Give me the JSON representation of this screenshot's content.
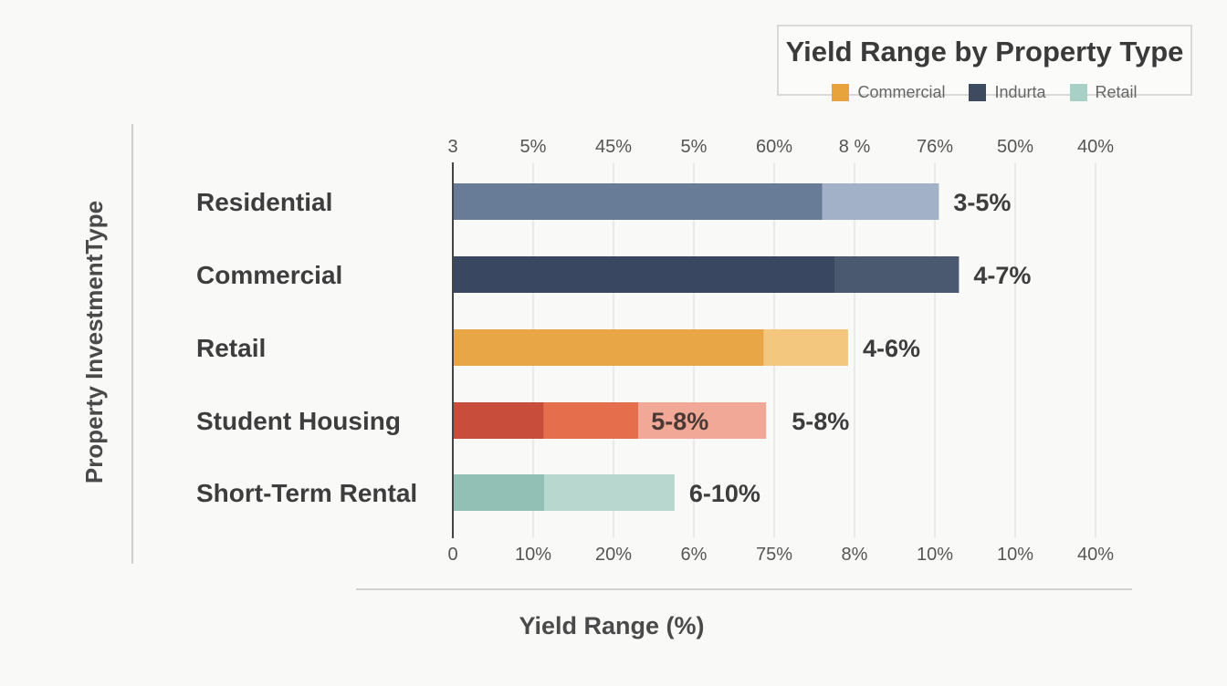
{
  "chart_data": {
    "type": "bar",
    "orientation": "horizontal",
    "stacked": true,
    "title": "Yield Range by Property Type",
    "xlabel": "Yield Range (%)",
    "ylabel": "Property InvestmentType",
    "top_tick_labels": [
      "3",
      "5%",
      "45%",
      "5%",
      "60%",
      "8 %",
      "76%",
      "50%",
      "40%"
    ],
    "bottom_tick_labels": [
      "0",
      "10%",
      "20%",
      "6%",
      "75%",
      "8%",
      "10%",
      "10%",
      "40%"
    ],
    "xlim": [
      0,
      8
    ],
    "grid": true,
    "legend": {
      "position": "top-right",
      "entries": [
        {
          "label": "Commercial",
          "color": "#e8a33d"
        },
        {
          "label": "Indurta",
          "color": "#3d4a60"
        },
        {
          "label": "Retail",
          "color": "#a9d0c6"
        }
      ]
    },
    "categories": [
      "Residential",
      "Commercial",
      "Retail",
      "Student Housing",
      "Short-Term Rental"
    ],
    "bars": [
      {
        "category": "Residential",
        "label": "3-5%",
        "segments": [
          {
            "value": 4.6,
            "color": "#687b97"
          },
          {
            "value": 1.45,
            "color": "#a2b0c8"
          }
        ]
      },
      {
        "category": "Commercial",
        "label": "4-7%",
        "segments": [
          {
            "value": 4.75,
            "color": "#3a4760"
          },
          {
            "value": 1.55,
            "color": "#4a5870"
          }
        ]
      },
      {
        "category": "Retail",
        "label": "4-6%",
        "segments": [
          {
            "value": 3.87,
            "color": "#e8a646"
          },
          {
            "value": 1.05,
            "color": "#f3c87e"
          }
        ]
      },
      {
        "category": "Student Housing",
        "label": "5-8%",
        "inner_label": "5-8%",
        "segments": [
          {
            "value": 1.13,
            "color": "#c84d3b"
          },
          {
            "value": 1.18,
            "color": "#e56e4c"
          },
          {
            "value": 1.59,
            "color": "#f1a896"
          }
        ]
      },
      {
        "category": "Short-Term Rental",
        "label": "6-10%",
        "segments": [
          {
            "value": 1.14,
            "color": "#93c0b4"
          },
          {
            "value": 1.62,
            "color": "#b7d7cf"
          }
        ]
      }
    ]
  }
}
